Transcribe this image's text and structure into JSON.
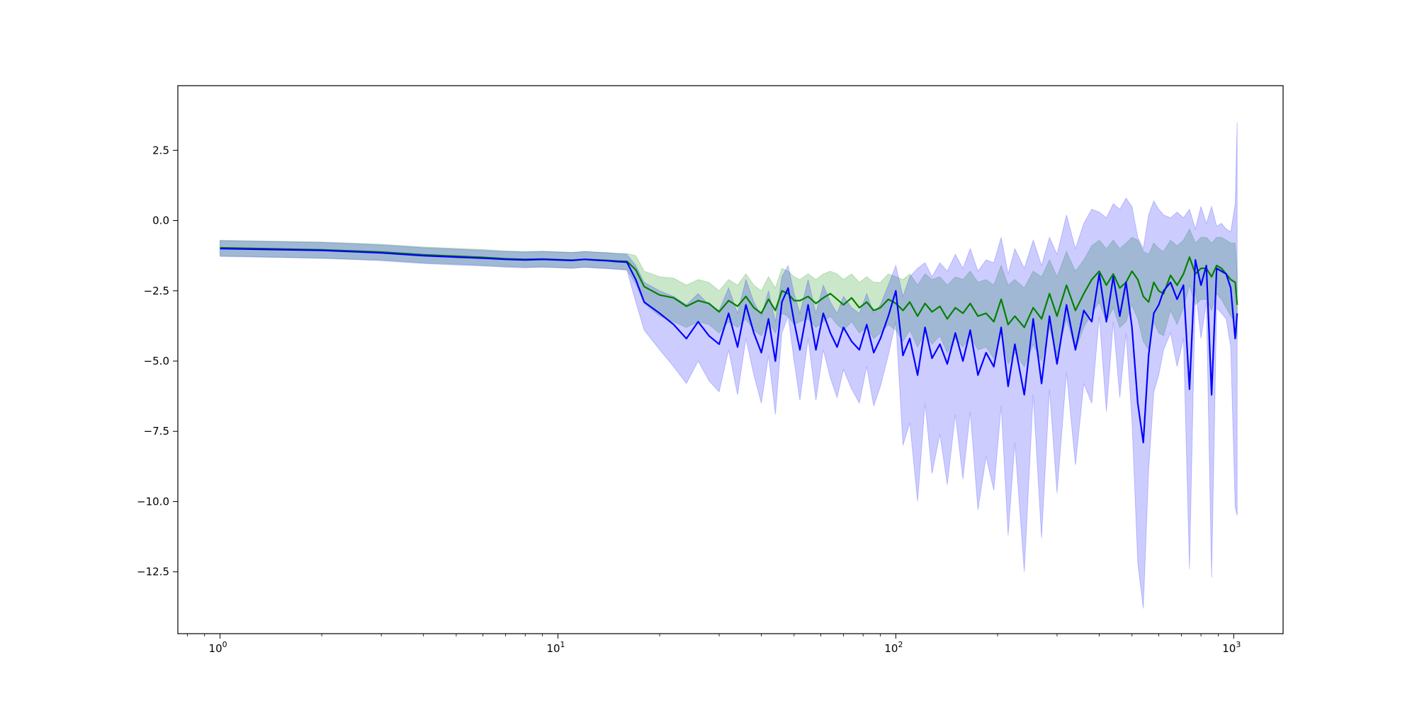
{
  "chart_data": {
    "type": "line",
    "title": "",
    "xlabel": "",
    "ylabel": "",
    "x_scale": "log",
    "xlim": [
      0.75,
      1400
    ],
    "ylim": [
      -14.7,
      4.8
    ],
    "grid": false,
    "x_ticks": [
      {
        "base": "10",
        "exp": "0",
        "value": 1
      },
      {
        "base": "10",
        "exp": "1",
        "value": 10
      },
      {
        "base": "10",
        "exp": "2",
        "value": 100
      },
      {
        "base": "10",
        "exp": "3",
        "value": 1000
      }
    ],
    "y_ticks": [
      {
        "label": "2.5",
        "value": 2.5
      },
      {
        "label": "0.0",
        "value": 0
      },
      {
        "label": "−2.5",
        "value": -2.5
      },
      {
        "label": "−5.0",
        "value": -5
      },
      {
        "label": "−7.5",
        "value": -7.5
      },
      {
        "label": "−10.0",
        "value": -10
      },
      {
        "label": "−12.5",
        "value": -12.5
      }
    ],
    "series": [
      {
        "color": "#008000",
        "band_color": "#2ca02c",
        "band_opacity": 0.25,
        "x": [
          1,
          2,
          3,
          4,
          5,
          6,
          7,
          8,
          9,
          10,
          11,
          12,
          13,
          14,
          15,
          16,
          17,
          18,
          20,
          22,
          24,
          26,
          28,
          30,
          32,
          34,
          36,
          38,
          40,
          42,
          44,
          46,
          48,
          50,
          52,
          55,
          58,
          61,
          64,
          67,
          70,
          74,
          78,
          82,
          86,
          90,
          95,
          100,
          105,
          110,
          116,
          122,
          128,
          135,
          142,
          150,
          158,
          166,
          175,
          185,
          195,
          205,
          215,
          225,
          240,
          255,
          270,
          285,
          300,
          320,
          340,
          360,
          380,
          400,
          420,
          440,
          460,
          480,
          500,
          520,
          540,
          560,
          580,
          600,
          620,
          650,
          680,
          710,
          740,
          770,
          800,
          830,
          860,
          890,
          920,
          950,
          980,
          1010,
          1024
        ],
        "y": [
          -0.97,
          -1.04,
          -1.12,
          -1.22,
          -1.27,
          -1.31,
          -1.36,
          -1.38,
          -1.37,
          -1.39,
          -1.41,
          -1.38,
          -1.4,
          -1.42,
          -1.44,
          -1.45,
          -1.75,
          -2.35,
          -2.65,
          -2.75,
          -3.05,
          -2.85,
          -2.95,
          -3.25,
          -2.85,
          -3.05,
          -2.7,
          -3.1,
          -3.3,
          -2.8,
          -3.2,
          -2.5,
          -2.6,
          -2.85,
          -2.85,
          -2.7,
          -2.95,
          -2.75,
          -2.6,
          -2.8,
          -3.0,
          -2.75,
          -3.1,
          -2.9,
          -3.2,
          -3.1,
          -2.8,
          -2.95,
          -3.2,
          -2.9,
          -3.4,
          -2.95,
          -3.25,
          -3.05,
          -3.5,
          -3.1,
          -3.3,
          -2.95,
          -3.4,
          -3.3,
          -3.6,
          -2.8,
          -3.7,
          -3.4,
          -3.8,
          -3.1,
          -3.5,
          -2.6,
          -3.4,
          -2.3,
          -3.2,
          -2.6,
          -2.1,
          -1.8,
          -2.3,
          -1.9,
          -2.4,
          -2.2,
          -1.8,
          -2.1,
          -2.7,
          -2.9,
          -2.2,
          -2.5,
          -2.6,
          -1.95,
          -2.3,
          -1.9,
          -1.3,
          -1.9,
          -1.7,
          -1.7,
          -2.0,
          -1.6,
          -1.7,
          -1.9,
          -2.1,
          -2.2,
          -3.0
        ],
        "lower": [
          -1.25,
          -1.34,
          -1.4,
          -1.5,
          -1.55,
          -1.59,
          -1.63,
          -1.66,
          -1.65,
          -1.67,
          -1.69,
          -1.66,
          -1.68,
          -1.7,
          -1.72,
          -1.75,
          -2.25,
          -2.95,
          -3.4,
          -3.6,
          -3.8,
          -3.6,
          -3.7,
          -4.0,
          -3.6,
          -3.8,
          -3.5,
          -3.9,
          -4.1,
          -3.6,
          -4.0,
          -3.3,
          -3.4,
          -3.7,
          -3.6,
          -3.5,
          -3.8,
          -3.6,
          -3.4,
          -3.7,
          -3.9,
          -3.6,
          -4.0,
          -3.8,
          -4.2,
          -4.0,
          -3.7,
          -3.9,
          -4.3,
          -3.9,
          -4.5,
          -4.0,
          -4.4,
          -4.1,
          -4.7,
          -4.2,
          -4.5,
          -4.1,
          -4.6,
          -4.5,
          -4.9,
          -4.0,
          -5.1,
          -4.7,
          -5.2,
          -4.4,
          -5.0,
          -3.8,
          -4.8,
          -3.5,
          -4.6,
          -3.8,
          -3.3,
          -2.9,
          -3.6,
          -3.1,
          -3.8,
          -3.6,
          -3.0,
          -3.5,
          -4.3,
          -4.6,
          -3.6,
          -4.0,
          -4.1,
          -3.2,
          -3.7,
          -3.1,
          -2.3,
          -3.0,
          -2.8,
          -2.8,
          -3.2,
          -2.6,
          -2.8,
          -3.1,
          -3.4,
          -3.6,
          -4.2
        ],
        "upper": [
          -0.7,
          -0.76,
          -0.84,
          -0.94,
          -0.99,
          -1.03,
          -1.08,
          -1.1,
          -1.09,
          -1.11,
          -1.13,
          -1.1,
          -1.12,
          -1.14,
          -1.16,
          -1.17,
          -1.25,
          -1.8,
          -2.0,
          -2.05,
          -2.3,
          -2.1,
          -2.2,
          -2.5,
          -2.1,
          -2.3,
          -1.9,
          -2.3,
          -2.5,
          -2.0,
          -2.4,
          -1.7,
          -1.8,
          -2.0,
          -2.1,
          -1.9,
          -2.1,
          -1.9,
          -1.8,
          -1.9,
          -2.1,
          -1.9,
          -2.2,
          -2.0,
          -2.2,
          -2.2,
          -1.9,
          -2.0,
          -2.1,
          -1.9,
          -2.3,
          -1.9,
          -2.1,
          -2.0,
          -2.3,
          -2.0,
          -2.1,
          -1.8,
          -2.2,
          -2.1,
          -2.3,
          -1.6,
          -2.3,
          -2.1,
          -2.4,
          -1.8,
          -2.0,
          -1.4,
          -2.0,
          -1.1,
          -1.8,
          -1.4,
          -0.9,
          -0.7,
          -1.0,
          -0.7,
          -1.0,
          -0.8,
          -0.6,
          -0.7,
          -1.1,
          -1.2,
          -0.8,
          -1.0,
          -1.1,
          -0.7,
          -0.9,
          -0.7,
          -0.3,
          -0.8,
          -0.6,
          -0.6,
          -0.8,
          -0.6,
          -0.6,
          -0.7,
          -0.8,
          -0.8,
          -1.8
        ]
      },
      {
        "color": "#0000ff",
        "band_color": "#0000ff",
        "band_opacity": 0.2,
        "x": [
          1,
          2,
          3,
          4,
          5,
          6,
          7,
          8,
          9,
          10,
          11,
          12,
          13,
          14,
          15,
          16,
          17,
          18,
          20,
          22,
          24,
          26,
          28,
          30,
          32,
          34,
          36,
          38,
          40,
          42,
          44,
          46,
          48,
          50,
          52,
          55,
          58,
          61,
          64,
          67,
          70,
          74,
          78,
          82,
          86,
          90,
          95,
          100,
          105,
          110,
          116,
          122,
          128,
          135,
          142,
          150,
          158,
          166,
          175,
          185,
          195,
          205,
          215,
          225,
          240,
          255,
          270,
          285,
          300,
          320,
          340,
          360,
          380,
          400,
          420,
          440,
          460,
          480,
          500,
          520,
          540,
          560,
          580,
          600,
          620,
          650,
          680,
          710,
          740,
          770,
          800,
          830,
          860,
          890,
          920,
          950,
          980,
          1010,
          1024
        ],
        "y": [
          -1.0,
          -1.06,
          -1.15,
          -1.25,
          -1.3,
          -1.34,
          -1.38,
          -1.4,
          -1.38,
          -1.4,
          -1.42,
          -1.38,
          -1.41,
          -1.43,
          -1.46,
          -1.48,
          -2.1,
          -2.9,
          -3.3,
          -3.7,
          -4.2,
          -3.6,
          -4.1,
          -4.4,
          -3.3,
          -4.5,
          -3.0,
          -4.0,
          -4.7,
          -3.5,
          -5.0,
          -2.9,
          -2.4,
          -3.6,
          -4.6,
          -3.0,
          -4.6,
          -3.3,
          -4.0,
          -4.5,
          -3.8,
          -4.3,
          -4.6,
          -3.7,
          -4.7,
          -4.2,
          -3.4,
          -2.5,
          -4.8,
          -4.2,
          -5.5,
          -3.8,
          -4.9,
          -4.4,
          -5.1,
          -4.0,
          -5.0,
          -3.9,
          -5.5,
          -4.7,
          -5.2,
          -3.8,
          -5.9,
          -4.4,
          -6.2,
          -3.5,
          -5.8,
          -3.4,
          -5.1,
          -3.0,
          -4.6,
          -3.2,
          -3.6,
          -1.9,
          -3.6,
          -2.0,
          -3.4,
          -2.2,
          -3.8,
          -6.5,
          -7.9,
          -4.8,
          -3.3,
          -3.0,
          -2.5,
          -2.2,
          -2.8,
          -2.3,
          -6.0,
          -1.4,
          -2.3,
          -1.6,
          -6.2,
          -1.7,
          -1.8,
          -1.9,
          -2.4,
          -4.2,
          -3.3
        ],
        "lower": [
          -1.28,
          -1.34,
          -1.43,
          -1.53,
          -1.58,
          -1.62,
          -1.66,
          -1.68,
          -1.66,
          -1.68,
          -1.7,
          -1.66,
          -1.69,
          -1.71,
          -1.74,
          -1.76,
          -2.9,
          -3.9,
          -4.6,
          -5.2,
          -5.8,
          -5.0,
          -5.7,
          -6.1,
          -4.6,
          -6.2,
          -4.2,
          -5.5,
          -6.5,
          -4.8,
          -6.9,
          -4.0,
          -3.4,
          -5.0,
          -6.4,
          -4.2,
          -6.4,
          -4.6,
          -5.6,
          -6.3,
          -5.3,
          -6.0,
          -6.5,
          -5.2,
          -6.6,
          -5.9,
          -4.8,
          -3.6,
          -8.0,
          -7.2,
          -10.0,
          -6.5,
          -9.0,
          -7.6,
          -9.4,
          -6.9,
          -9.2,
          -6.8,
          -10.3,
          -8.4,
          -9.6,
          -6.6,
          -11.2,
          -7.9,
          -12.5,
          -6.2,
          -11.3,
          -6.0,
          -9.7,
          -5.4,
          -8.7,
          -5.8,
          -6.5,
          -3.4,
          -6.8,
          -3.6,
          -6.3,
          -4.0,
          -7.1,
          -12.2,
          -13.8,
          -8.9,
          -6.1,
          -5.5,
          -4.6,
          -4.0,
          -5.2,
          -4.2,
          -12.4,
          -2.4,
          -4.2,
          -2.9,
          -12.7,
          -3.1,
          -3.3,
          -3.5,
          -4.5,
          -10.2,
          -10.5
        ],
        "upper": [
          -0.72,
          -0.78,
          -0.87,
          -0.97,
          -1.02,
          -1.06,
          -1.1,
          -1.12,
          -1.1,
          -1.12,
          -1.14,
          -1.1,
          -1.13,
          -1.15,
          -1.18,
          -1.2,
          -1.6,
          -2.2,
          -2.5,
          -2.7,
          -3.0,
          -2.6,
          -3.0,
          -3.2,
          -2.4,
          -3.3,
          -2.1,
          -2.9,
          -3.4,
          -2.5,
          -3.6,
          -2.0,
          -1.6,
          -2.6,
          -3.3,
          -2.1,
          -3.3,
          -2.3,
          -2.9,
          -3.3,
          -2.7,
          -3.1,
          -3.3,
          -2.6,
          -3.3,
          -3.0,
          -2.3,
          -1.6,
          -2.7,
          -2.0,
          -1.7,
          -1.5,
          -2.0,
          -1.5,
          -1.8,
          -1.2,
          -1.7,
          -1.0,
          -1.8,
          -1.4,
          -1.5,
          -0.6,
          -1.9,
          -1.0,
          -1.7,
          -0.7,
          -1.6,
          -0.6,
          -1.2,
          0.2,
          -1.0,
          -0.1,
          0.4,
          0.3,
          0.1,
          0.6,
          0.4,
          0.8,
          0.5,
          -0.6,
          -1.0,
          0.2,
          0.7,
          0.4,
          0.2,
          0.1,
          0.3,
          0.1,
          0.4,
          -0.3,
          0.5,
          -0.1,
          0.5,
          -0.2,
          -0.1,
          -0.3,
          -0.4,
          0.6,
          3.5
        ]
      }
    ]
  }
}
